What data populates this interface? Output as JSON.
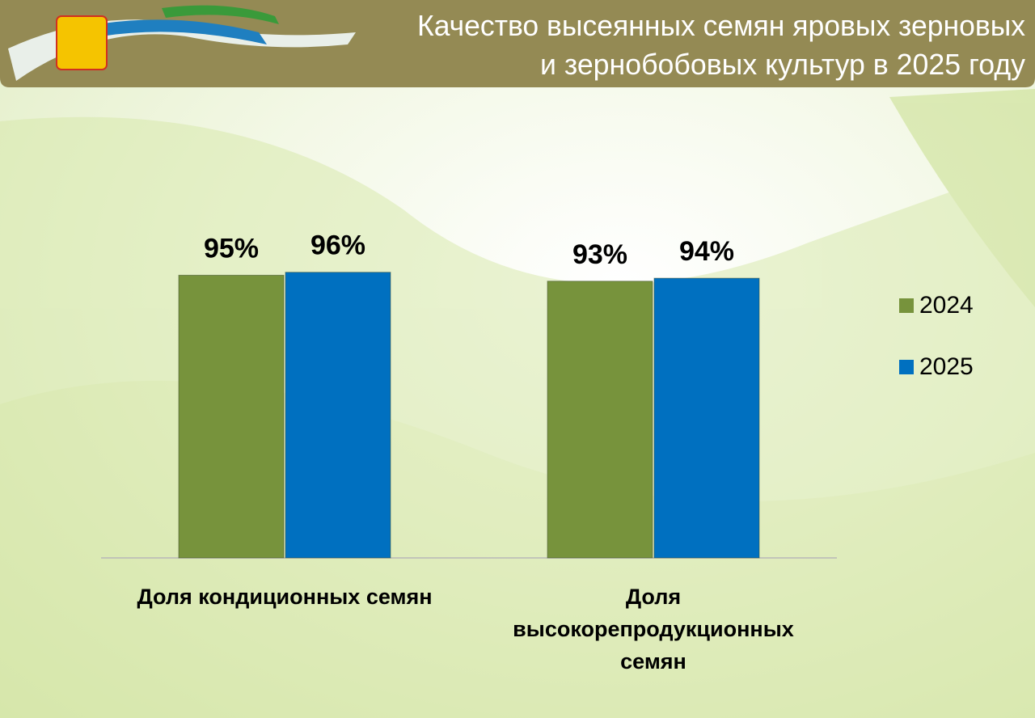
{
  "chart_data": {
    "type": "bar",
    "title": [
      "Качество высеянных семян яровых зерновых",
      "и зернобобовых культур в 2025 году"
    ],
    "categories": [
      "Доля кондиционных семян",
      "Доля высокорепродукционных семян"
    ],
    "series": [
      {
        "name": "2024",
        "color": "#77933c",
        "values": [
          95,
          93
        ],
        "value_labels": [
          "95%",
          "93%"
        ]
      },
      {
        "name": "2025",
        "color": "#0070c0",
        "values": [
          96,
          94
        ],
        "value_labels": [
          "96%",
          "94%"
        ]
      }
    ],
    "ylim": [
      0,
      100
    ]
  }
}
